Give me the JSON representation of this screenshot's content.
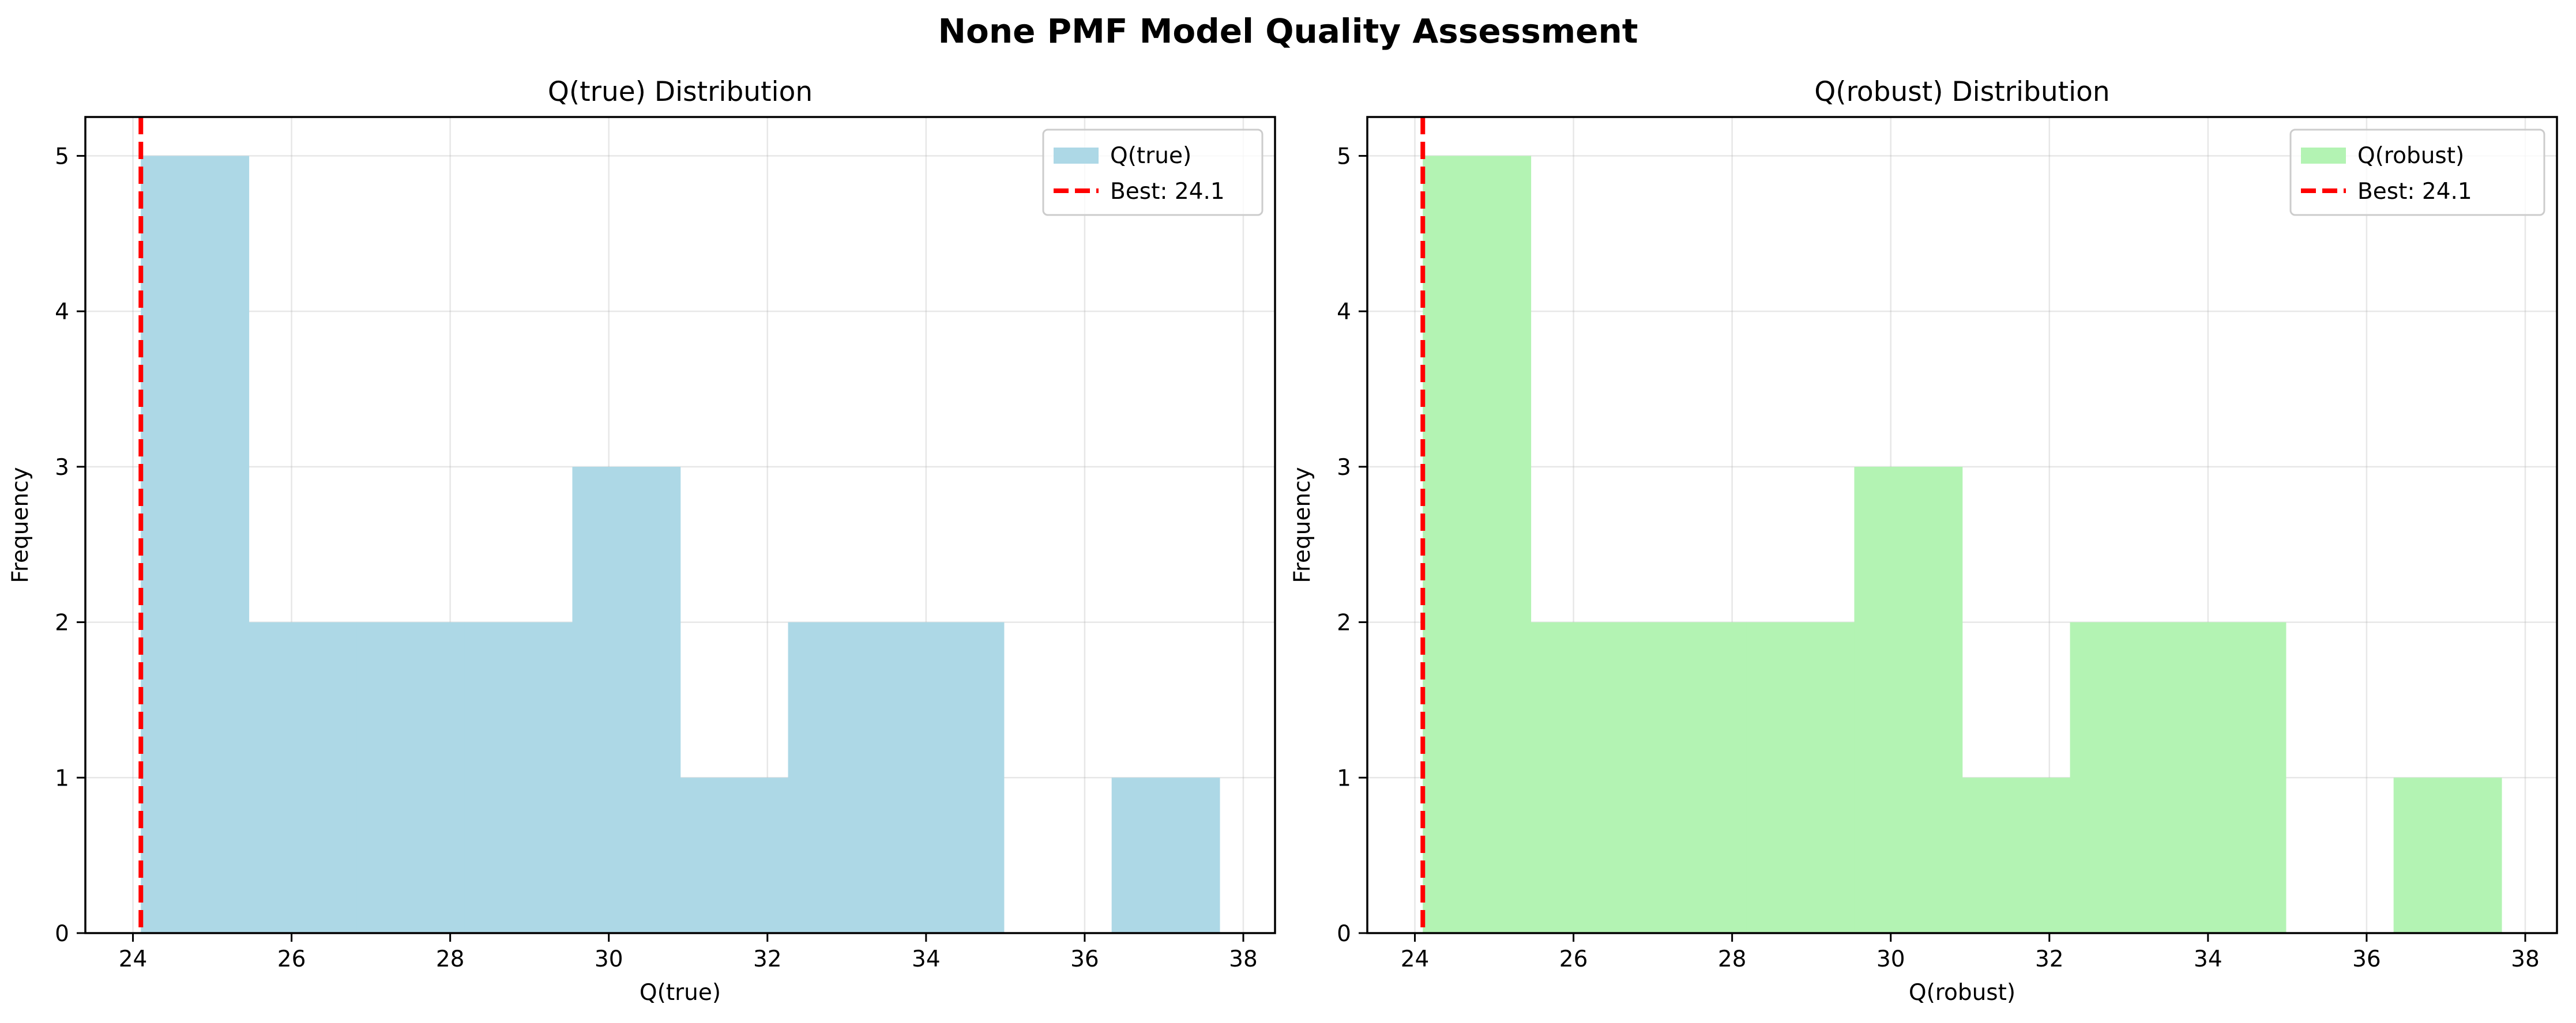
{
  "suptitle": "None PMF Model Quality Assessment",
  "chart_data": [
    {
      "type": "histogram",
      "title": "Q(true) Distribution",
      "xlabel": "Q(true)",
      "ylabel": "Frequency",
      "xlim": [
        23.4,
        38.4
      ],
      "ylim": [
        0,
        5.25
      ],
      "xticks": [
        "24",
        "26",
        "28",
        "30",
        "32",
        "34",
        "36",
        "38"
      ],
      "yticks": [
        "0",
        "1",
        "2",
        "3",
        "4",
        "5"
      ],
      "grid": true,
      "legend_position": "upper right",
      "bin_edges": [
        24.1,
        25.46,
        26.82,
        28.18,
        29.54,
        30.9,
        32.26,
        33.62,
        34.98,
        36.34,
        37.7
      ],
      "counts": [
        5,
        2,
        2,
        2,
        3,
        1,
        2,
        2,
        0,
        1
      ],
      "bar_color": "#add8e6",
      "reference_line": {
        "value": 24.1,
        "color": "#ff0000",
        "style": "dashed"
      },
      "legend": [
        {
          "label": "Q(true)",
          "kind": "patch",
          "color": "#add8e6"
        },
        {
          "label": "Best: 24.1",
          "kind": "line",
          "color": "#ff0000"
        }
      ]
    },
    {
      "type": "histogram",
      "title": "Q(robust) Distribution",
      "xlabel": "Q(robust)",
      "ylabel": "Frequency",
      "xlim": [
        23.4,
        38.4
      ],
      "ylim": [
        0,
        5.25
      ],
      "xticks": [
        "24",
        "26",
        "28",
        "30",
        "32",
        "34",
        "36",
        "38"
      ],
      "yticks": [
        "0",
        "1",
        "2",
        "3",
        "4",
        "5"
      ],
      "grid": true,
      "legend_position": "upper right",
      "bin_edges": [
        24.1,
        25.46,
        26.82,
        28.18,
        29.54,
        30.9,
        32.26,
        33.62,
        34.98,
        36.34,
        37.7
      ],
      "counts": [
        5,
        2,
        2,
        2,
        3,
        1,
        2,
        2,
        0,
        1
      ],
      "bar_color": "#b3f3b3",
      "reference_line": {
        "value": 24.1,
        "color": "#ff0000",
        "style": "dashed"
      },
      "legend": [
        {
          "label": "Q(robust)",
          "kind": "patch",
          "color": "#b3f3b3"
        },
        {
          "label": "Best: 24.1",
          "kind": "line",
          "color": "#ff0000"
        }
      ]
    }
  ]
}
